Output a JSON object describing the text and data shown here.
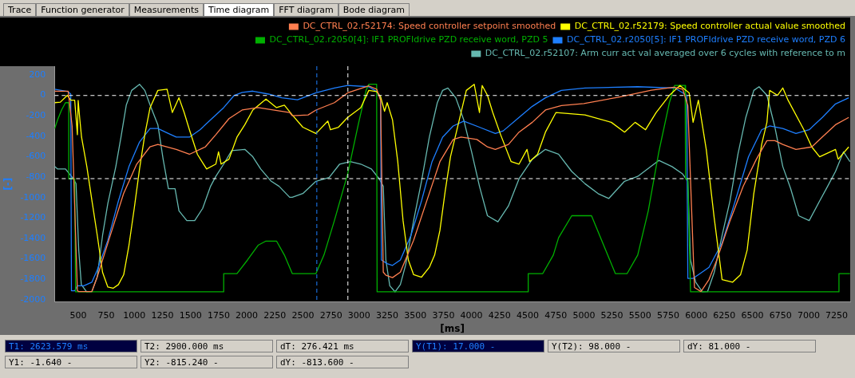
{
  "chart_data": {
    "type": "line",
    "xlabel": "[ms]",
    "ylabel": "[-]",
    "xlim": [
      290,
      7370
    ],
    "ylim": [
      -2020,
      285
    ],
    "xticks": [
      500,
      750,
      1000,
      1250,
      1500,
      1750,
      2000,
      2250,
      2500,
      2750,
      3000,
      3250,
      3500,
      3750,
      4000,
      4250,
      4500,
      4750,
      5000,
      5250,
      5500,
      5750,
      6000,
      6250,
      6500,
      6750,
      7000,
      7250
    ],
    "yticks": [
      200,
      0,
      -200,
      -400,
      -600,
      -800,
      -1000,
      -1200,
      -1400,
      -1600,
      -1800,
      -2000
    ],
    "legend": "top",
    "marker": "none",
    "line_style": "solid",
    "series": [
      {
        "name": "DC_CTRL_02.r52174: Speed controller setpoint smoothed",
        "color": "#ff7f50",
        "x": [
          291,
          411,
          446,
          493,
          505,
          622,
          669,
          786,
          904,
          1021,
          1138,
          1209,
          1373,
          1490,
          1631,
          1725,
          1842,
          1959,
          2100,
          2382,
          2405,
          2546,
          2616,
          2780,
          2898,
          3086,
          3156,
          3191,
          3215,
          3238,
          3297,
          3367,
          3485,
          3602,
          3719,
          3837,
          3907,
          4048,
          4142,
          4212,
          4329,
          4423,
          4541,
          4658,
          4800,
          5000,
          5300,
          5600,
          5800,
          5880,
          5925,
          5984,
          6042,
          6113,
          6183,
          6301,
          6418,
          6535,
          6629,
          6700,
          6770,
          6887,
          7028,
          7122,
          7239,
          7357
        ],
        "values": [
          40,
          40,
          -300,
          -1912,
          -1920,
          -1920,
          -1779,
          -1370,
          -962,
          -673,
          -505,
          -481,
          -529,
          -577,
          -505,
          -385,
          -228,
          -144,
          -120,
          -168,
          -200,
          -192,
          -144,
          -72,
          24,
          92,
          60,
          -48,
          -1730,
          -1760,
          -1784,
          -1730,
          -1418,
          -1033,
          -649,
          -432,
          -408,
          -432,
          -505,
          -529,
          -481,
          -360,
          -264,
          -144,
          -100,
          -80,
          -20,
          50,
          80,
          60,
          -100,
          -1880,
          -1920,
          -1803,
          -1611,
          -1226,
          -889,
          -625,
          -444,
          -444,
          -481,
          -529,
          -505,
          -408,
          -288,
          -216
        ]
      },
      {
        "name": "DC_CTRL_02.r52179: Speed controller actual value smoothed",
        "color": "#ffff00",
        "x": [
          291,
          341,
          404,
          434,
          469,
          493,
          500,
          515,
          530,
          577,
          623,
          670,
          717,
          764,
          811,
          858,
          905,
          952,
          999,
          1046,
          1093,
          1140,
          1209,
          1291,
          1338,
          1397,
          1443,
          1490,
          1561,
          1643,
          1725,
          1749,
          1772,
          1842,
          1913,
          1983,
          2054,
          2171,
          2265,
          2335,
          2405,
          2499,
          2616,
          2722,
          2745,
          2816,
          2898,
          3015,
          3086,
          3156,
          3191,
          3226,
          3250,
          3297,
          3344,
          3391,
          3438,
          3485,
          3555,
          3625,
          3672,
          3719,
          3766,
          3813,
          3860,
          3907,
          3954,
          4024,
          4071,
          4095,
          4142,
          4189,
          4259,
          4353,
          4423,
          4494,
          4517,
          4588,
          4658,
          4752,
          5010,
          5244,
          5362,
          5456,
          5549,
          5643,
          5761,
          5855,
          5937,
          5972,
          6019,
          6089,
          6160,
          6230,
          6324,
          6394,
          6453,
          6512,
          6582,
          6629,
          6653,
          6723,
          6770,
          6817,
          6958,
          7028,
          7098,
          7239,
          7263,
          7357
        ],
        "values": [
          -72,
          -67,
          0,
          -48,
          -48,
          -385,
          -50,
          -240,
          -409,
          -697,
          -1034,
          -1371,
          -1732,
          -1876,
          -1888,
          -1852,
          -1756,
          -1467,
          -1106,
          -721,
          -385,
          -120,
          48,
          60,
          -168,
          -24,
          -168,
          -337,
          -577,
          -721,
          -673,
          -553,
          -673,
          -625,
          -409,
          -288,
          -144,
          -36,
          -120,
          -96,
          -192,
          -312,
          -373,
          -252,
          -337,
          -312,
          -216,
          -120,
          48,
          36,
          -12,
          -156,
          -72,
          -240,
          -649,
          -1226,
          -1611,
          -1755,
          -1779,
          -1683,
          -1563,
          -1322,
          -937,
          -601,
          -385,
          -168,
          48,
          108,
          -168,
          96,
          0,
          -168,
          -385,
          -649,
          -673,
          -529,
          -649,
          -577,
          -360,
          -168,
          -192,
          -264,
          -360,
          -264,
          -337,
          -168,
          0,
          96,
          24,
          -264,
          -48,
          -529,
          -1202,
          -1803,
          -1828,
          -1756,
          -1515,
          -962,
          -481,
          -264,
          48,
          0,
          72,
          -48,
          -337,
          -505,
          -601,
          -529,
          -625,
          -505
        ]
      },
      {
        "name": "DC_CTRL_02.r2050[4]: IF1 PROFIdrive PZD receive word, PZD 5",
        "color": "#00b000",
        "x": [
          291,
          317,
          352,
          387,
          416,
          416,
          469,
          477,
          1795,
          1795,
          1913,
          2007,
          2101,
          2171,
          2265,
          2335,
          2405,
          2616,
          2687,
          2780,
          2898,
          2992,
          3062,
          3086,
          3156,
          3160,
          4505,
          4505,
          4634,
          4728,
          4775,
          4892,
          5068,
          5280,
          5385,
          5479,
          5573,
          5667,
          5761,
          5808,
          5901,
          5905,
          5925,
          5949,
          7270,
          7270,
          7368
        ],
        "values": [
          -325,
          -240,
          -144,
          -72,
          -72,
          -817,
          -817,
          -1923,
          -1923,
          -1744,
          -1744,
          -1611,
          -1467,
          -1426,
          -1426,
          -1563,
          -1744,
          -1744,
          -1563,
          -1226,
          -769,
          -288,
          48,
          108,
          108,
          -1923,
          -1923,
          -1744,
          -1744,
          -1563,
          -1394,
          -1178,
          -1178,
          -1744,
          -1744,
          -1563,
          -1130,
          -553,
          -72,
          96,
          96,
          -817,
          -817,
          -1923,
          -1923,
          -1744,
          -1744
        ]
      },
      {
        "name": "DC_CTRL_02.r2050[5]: IF1 PROFIdrive PZD receive word, PZD 6",
        "color": "#1e7fff",
        "x": [
          291,
          411,
          434,
          440,
          470,
          493,
          550,
          622,
          670,
          764,
          858,
          952,
          1046,
          1140,
          1209,
          1303,
          1373,
          1490,
          1584,
          1678,
          1795,
          1889,
          1960,
          2054,
          2195,
          2312,
          2452,
          2616,
          2780,
          2898,
          3086,
          3156,
          3191,
          3198,
          3250,
          3297,
          3367,
          3461,
          3555,
          3649,
          3743,
          3837,
          3931,
          4071,
          4212,
          4282,
          4423,
          4541,
          4658,
          4799,
          5010,
          5479,
          5808,
          5915,
          5925,
          5972,
          6019,
          6113,
          6230,
          6347,
          6465,
          6582,
          6653,
          6770,
          6887,
          7005,
          7122,
          7239,
          7357
        ],
        "values": [
          60,
          36,
          12,
          -1912,
          -1912,
          -1864,
          -1864,
          -1828,
          -1708,
          -1419,
          -1034,
          -697,
          -457,
          -325,
          -325,
          -373,
          -409,
          -409,
          -337,
          -240,
          -120,
          0,
          29,
          41,
          12,
          -24,
          -43,
          24,
          72,
          96,
          84,
          36,
          -24,
          -1611,
          -1647,
          -1664,
          -1611,
          -1371,
          -1034,
          -649,
          -409,
          -300,
          -252,
          -312,
          -373,
          -348,
          -216,
          -108,
          -24,
          48,
          72,
          84,
          72,
          0,
          -1791,
          -1791,
          -1755,
          -1683,
          -1443,
          -1034,
          -601,
          -337,
          -300,
          -325,
          -373,
          -337,
          -216,
          -84,
          -24
        ]
      },
      {
        "name": "DC_CTRL_02.r52107: Arm curr act val averaged over 6 cycles with reference to m",
        "color": "#66b8b0",
        "x": [
          291,
          317,
          387,
          458,
          481,
          505,
          528,
          575,
          622,
          669,
          717,
          764,
          835,
          881,
          928,
          976,
          1046,
          1093,
          1140,
          1209,
          1256,
          1303,
          1362,
          1397,
          1467,
          1537,
          1608,
          1678,
          1725,
          1795,
          1866,
          1983,
          2054,
          2124,
          2218,
          2288,
          2382,
          2405,
          2499,
          2616,
          2733,
          2827,
          2921,
          3015,
          3109,
          3179,
          3215,
          3238,
          3273,
          3320,
          3367,
          3414,
          3485,
          3555,
          3625,
          3696,
          3743,
          3790,
          3860,
          3931,
          4001,
          4071,
          4142,
          4235,
          4329,
          4423,
          4541,
          4658,
          4775,
          4892,
          5010,
          5127,
          5221,
          5362,
          5479,
          5596,
          5667,
          5784,
          5878,
          5925,
          5949,
          5995,
          6054,
          6101,
          6160,
          6230,
          6300,
          6371,
          6441,
          6512,
          6559,
          6629,
          6700,
          6770,
          6840,
          6911,
          7005,
          7098,
          7169,
          7239,
          7310,
          7368
        ],
        "values": [
          -697,
          -721,
          -721,
          -817,
          -865,
          -1515,
          -1852,
          -1923,
          -1920,
          -1779,
          -1371,
          -1058,
          -697,
          -409,
          -96,
          48,
          108,
          48,
          -96,
          -288,
          -625,
          -913,
          -913,
          -1130,
          -1226,
          -1226,
          -1106,
          -890,
          -793,
          -673,
          -541,
          -529,
          -601,
          -721,
          -841,
          -890,
          -998,
          -998,
          -961,
          -841,
          -805,
          -673,
          -649,
          -673,
          -721,
          -817,
          -890,
          -1611,
          -1864,
          -1923,
          -1852,
          -1659,
          -1226,
          -841,
          -409,
          -72,
          48,
          72,
          -24,
          -240,
          -553,
          -890,
          -1178,
          -1238,
          -1082,
          -817,
          -625,
          -529,
          -577,
          -745,
          -865,
          -962,
          -1010,
          -841,
          -793,
          -697,
          -637,
          -697,
          -769,
          -841,
          -1611,
          -1828,
          -1923,
          -1920,
          -1732,
          -1371,
          -1034,
          -577,
          -216,
          48,
          84,
          0,
          -312,
          -697,
          -913,
          -1178,
          -1226,
          -1034,
          -890,
          -745,
          -553,
          -649
        ]
      }
    ],
    "ref_lines": [
      {
        "axis": "x",
        "value": 2623.579,
        "label": null,
        "color": "#1e7fff",
        "line_style": "dashed"
      },
      {
        "axis": "x",
        "value": 2900,
        "label": null,
        "color": "#ffffff",
        "line_style": "dashed"
      },
      {
        "axis": "y",
        "value": -1.64,
        "label": null,
        "color": "#ffffff",
        "line_style": "dashed"
      },
      {
        "axis": "y",
        "value": -815.24,
        "label": null,
        "color": "#ffffff",
        "line_style": "dashed"
      }
    ],
    "annotations": [
      "Trace",
      "Function generator",
      "Measurements",
      "Time diagram",
      "FFT diagram",
      "Bode diagram",
      "T1: 2623.579 ms",
      "T2: 2900.000 ms",
      "dT: 276.421 ms",
      "Y(T1): 17.000 -",
      "Y(T2): 98.000 -",
      "dY: 81.000 -",
      "Y1: -1.640 -",
      "Y2: -815.240 -",
      "dY: -813.600 -"
    ]
  }
}
